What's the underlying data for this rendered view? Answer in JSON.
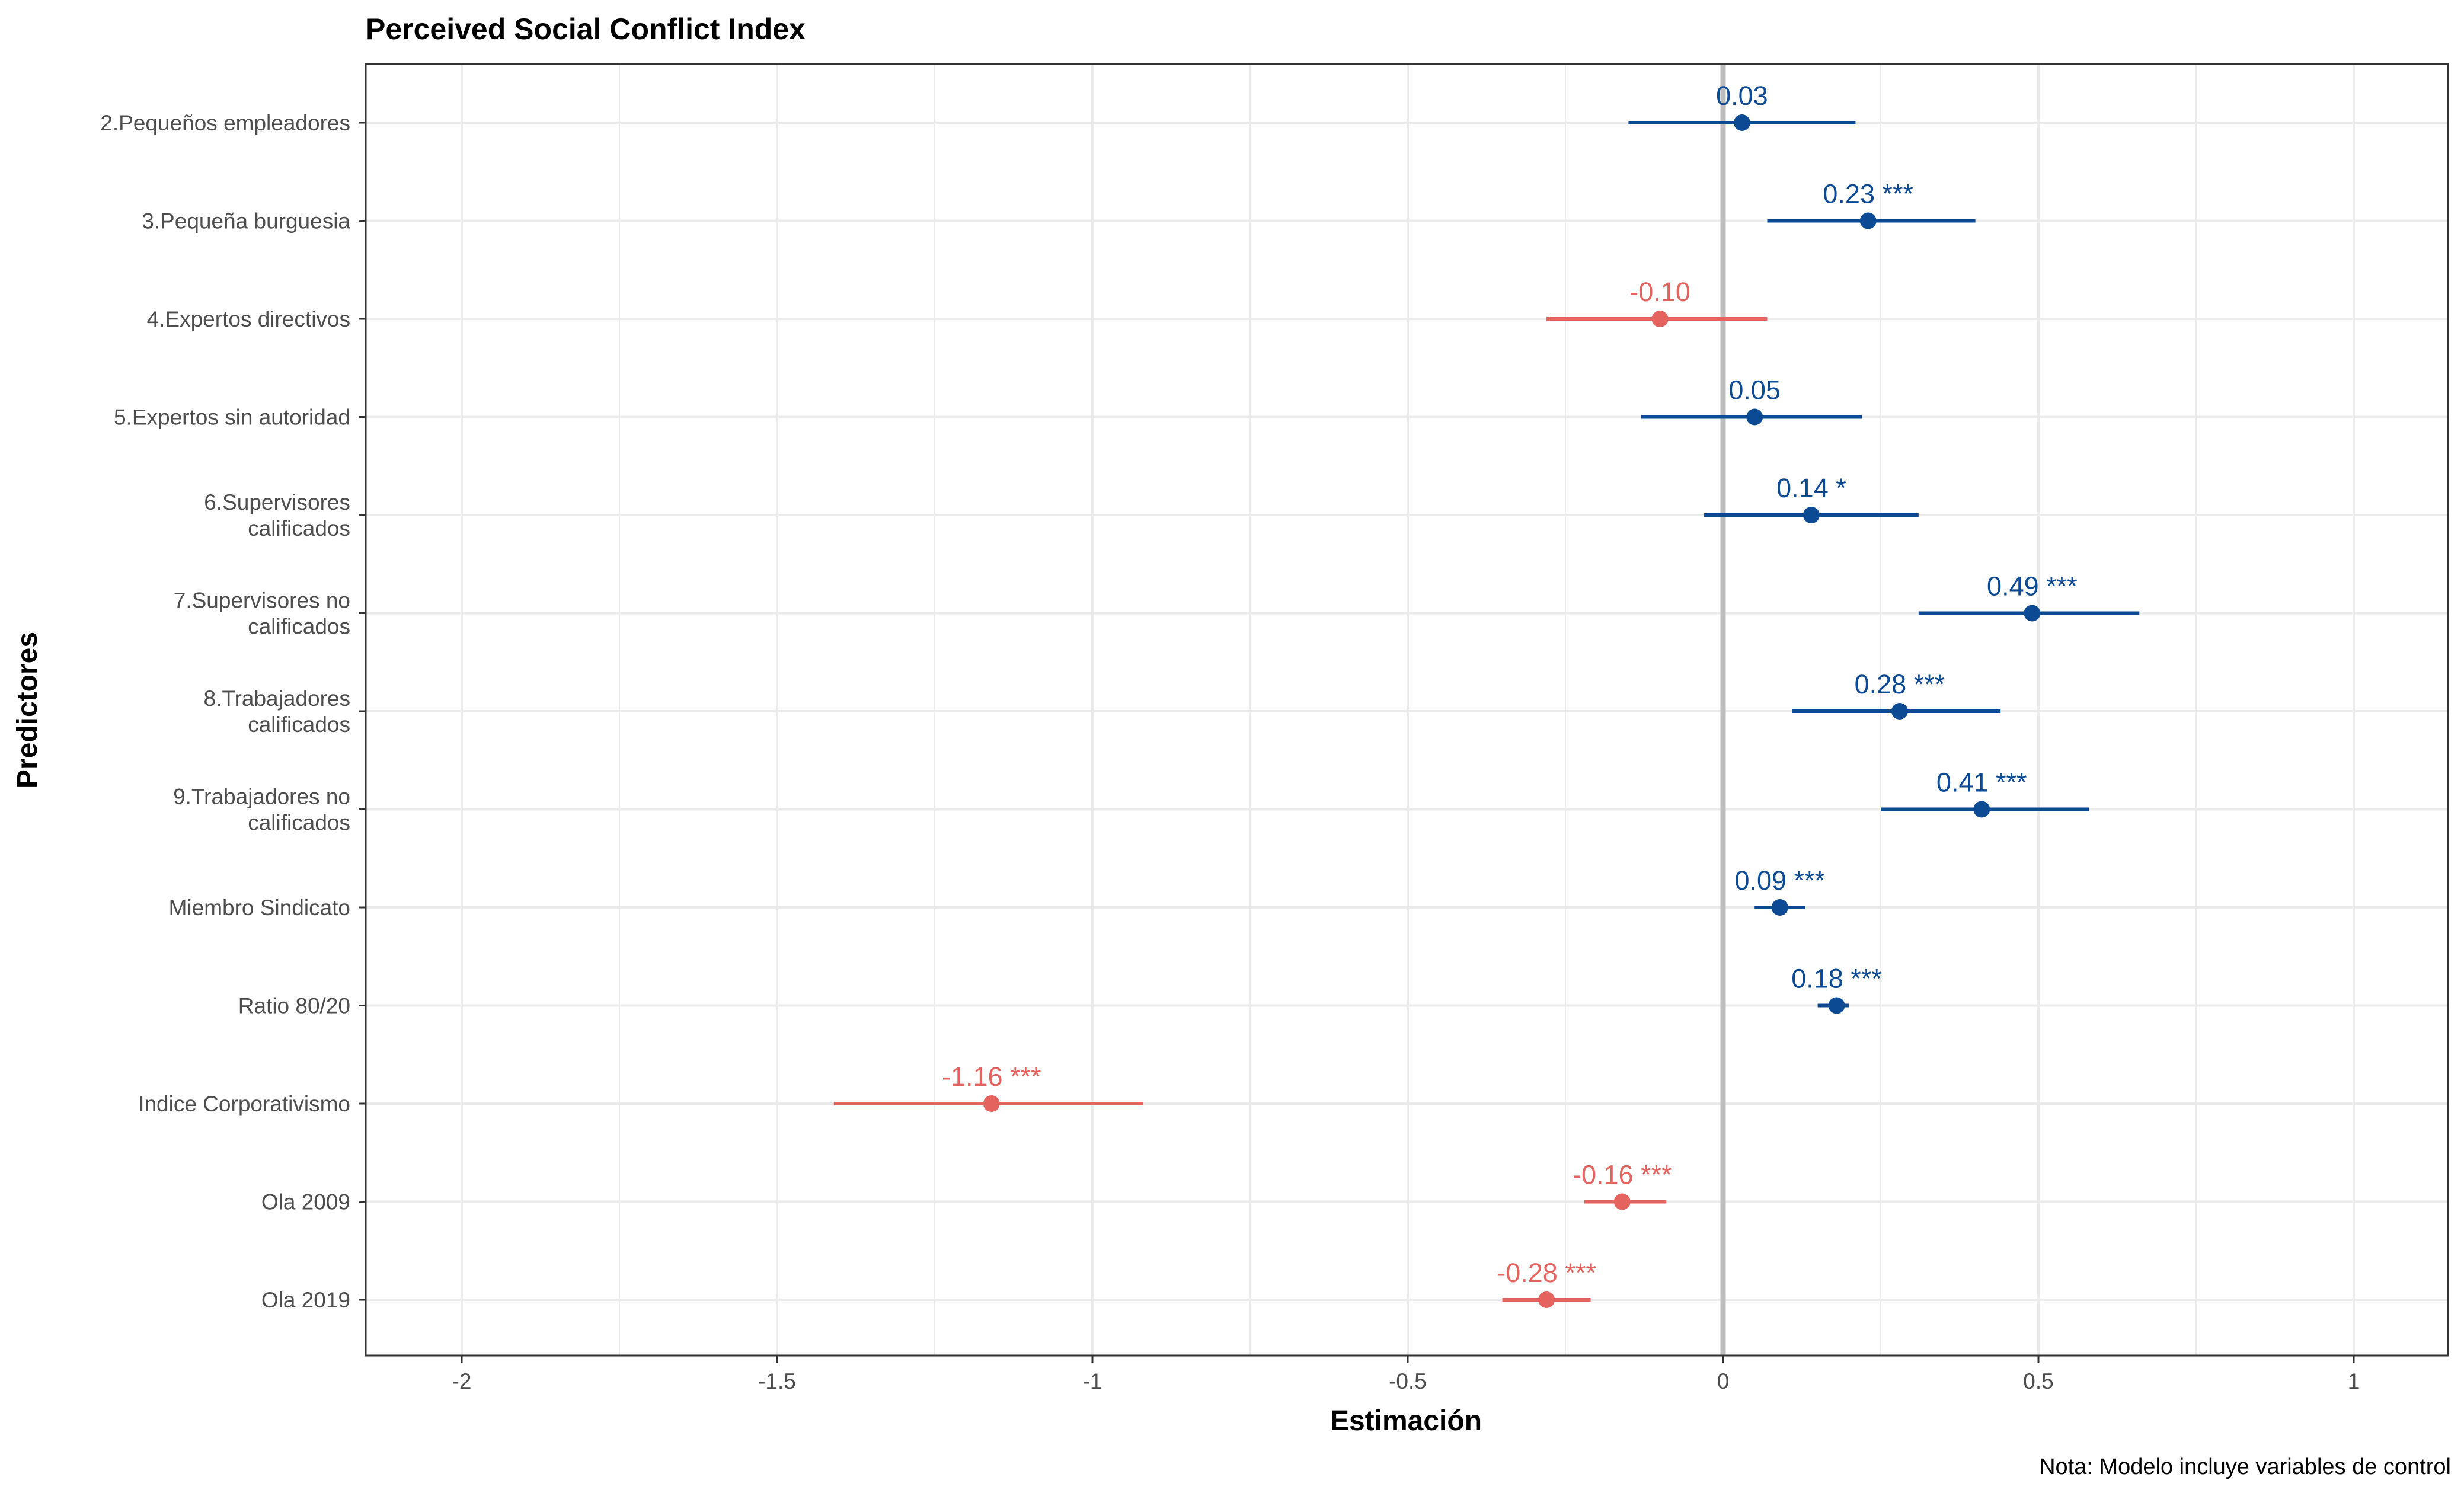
{
  "chart_data": {
    "type": "scatter",
    "title": "Perceived Social Conflict Index",
    "xlabel": "Estimación",
    "ylabel": "Predictores",
    "caption": "Nota: Modelo incluye variables de control",
    "xlim": [
      -2.15,
      1.15
    ],
    "xticks": [
      {
        "value": -2,
        "label": "-2"
      },
      {
        "value": -1.5,
        "label": "-1.5"
      },
      {
        "value": -1,
        "label": "-1"
      },
      {
        "value": -0.5,
        "label": "-0.5"
      },
      {
        "value": 0,
        "label": "0"
      },
      {
        "value": 0.5,
        "label": "0.5"
      },
      {
        "value": 1,
        "label": "1"
      }
    ],
    "grid": true,
    "reference_line": 0,
    "colors": {
      "positive": "#0d4a94",
      "negative": "#e5635e",
      "reference": "#bdbdbd",
      "grid": "#ebebeb",
      "panel_border": "#333333"
    },
    "points": [
      {
        "term": [
          "2.Pequeños empleadores"
        ],
        "estimate": 0.03,
        "ci_low": -0.15,
        "ci_high": 0.21,
        "label": "0.03"
      },
      {
        "term": [
          "3.Pequeña burguesia"
        ],
        "estimate": 0.23,
        "ci_low": 0.07,
        "ci_high": 0.4,
        "label": "0.23 ***"
      },
      {
        "term": [
          "4.Expertos directivos"
        ],
        "estimate": -0.1,
        "ci_low": -0.28,
        "ci_high": 0.07,
        "label": "-0.10"
      },
      {
        "term": [
          "5.Expertos sin autoridad"
        ],
        "estimate": 0.05,
        "ci_low": -0.13,
        "ci_high": 0.22,
        "label": "0.05"
      },
      {
        "term": [
          "6.Supervisores",
          "calificados"
        ],
        "estimate": 0.14,
        "ci_low": -0.03,
        "ci_high": 0.31,
        "label": "0.14 *"
      },
      {
        "term": [
          "7.Supervisores no",
          "calificados"
        ],
        "estimate": 0.49,
        "ci_low": 0.31,
        "ci_high": 0.66,
        "label": "0.49 ***"
      },
      {
        "term": [
          "8.Trabajadores",
          "calificados"
        ],
        "estimate": 0.28,
        "ci_low": 0.11,
        "ci_high": 0.44,
        "label": "0.28 ***"
      },
      {
        "term": [
          "9.Trabajadores no",
          "calificados"
        ],
        "estimate": 0.41,
        "ci_low": 0.25,
        "ci_high": 0.58,
        "label": "0.41 ***"
      },
      {
        "term": [
          "Miembro Sindicato"
        ],
        "estimate": 0.09,
        "ci_low": 0.05,
        "ci_high": 0.13,
        "label": "0.09 ***"
      },
      {
        "term": [
          "Ratio 80/20"
        ],
        "estimate": 0.18,
        "ci_low": 0.15,
        "ci_high": 0.2,
        "label": "0.18 ***"
      },
      {
        "term": [
          "Indice Corporativismo"
        ],
        "estimate": -1.16,
        "ci_low": -1.41,
        "ci_high": -0.92,
        "label": "-1.16 ***"
      },
      {
        "term": [
          "Ola 2009"
        ],
        "estimate": -0.16,
        "ci_low": -0.22,
        "ci_high": -0.09,
        "label": "-0.16 ***"
      },
      {
        "term": [
          "Ola 2019"
        ],
        "estimate": -0.28,
        "ci_low": -0.35,
        "ci_high": -0.21,
        "label": "-0.28 ***"
      }
    ]
  }
}
